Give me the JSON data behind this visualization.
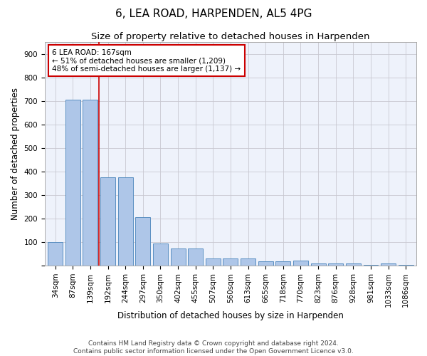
{
  "title1": "6, LEA ROAD, HARPENDEN, AL5 4PG",
  "title2": "Size of property relative to detached houses in Harpenden",
  "xlabel": "Distribution of detached houses by size in Harpenden",
  "ylabel": "Number of detached properties",
  "categories": [
    "34sqm",
    "87sqm",
    "139sqm",
    "192sqm",
    "244sqm",
    "297sqm",
    "350sqm",
    "402sqm",
    "455sqm",
    "507sqm",
    "560sqm",
    "613sqm",
    "665sqm",
    "718sqm",
    "770sqm",
    "823sqm",
    "876sqm",
    "928sqm",
    "981sqm",
    "1033sqm",
    "1086sqm"
  ],
  "values": [
    100,
    705,
    705,
    375,
    375,
    205,
    95,
    73,
    73,
    30,
    30,
    32,
    18,
    18,
    22,
    10,
    10,
    10,
    2,
    10,
    2
  ],
  "bar_color": "#aec6e8",
  "bar_edge_color": "#5a8fc2",
  "vline_x": 2.5,
  "vline_color": "#cc0000",
  "annotation_text": "6 LEA ROAD: 167sqm\n← 51% of detached houses are smaller (1,209)\n48% of semi-detached houses are larger (1,137) →",
  "annotation_box_color": "#ffffff",
  "annotation_box_edge": "#cc0000",
  "ylim": [
    0,
    950
  ],
  "yticks": [
    0,
    100,
    200,
    300,
    400,
    500,
    600,
    700,
    800,
    900
  ],
  "footer": "Contains HM Land Registry data © Crown copyright and database right 2024.\nContains public sector information licensed under the Open Government Licence v3.0.",
  "bg_color": "#eef2fb",
  "grid_color": "#c8c8d0",
  "title1_fontsize": 11,
  "title2_fontsize": 9.5,
  "xlabel_fontsize": 8.5,
  "ylabel_fontsize": 8.5,
  "tick_fontsize": 7.5,
  "footer_fontsize": 6.5,
  "annot_fontsize": 7.5
}
